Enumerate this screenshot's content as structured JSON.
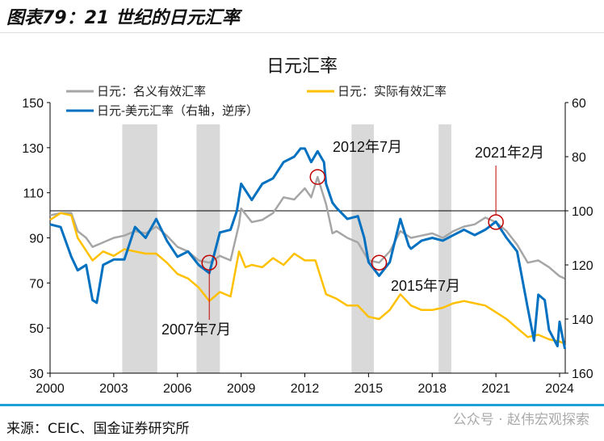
{
  "header": {
    "title": "图表79：21 世纪的日元汇率"
  },
  "footer": {
    "source": "来源：CEIC、国金证券研究所",
    "watermark": "公众号 · 赵伟宏观探索"
  },
  "colors": {
    "nominal": "#a6a6a6",
    "real": "#ffc000",
    "usdjpy": "#0070c0",
    "shade": "#d9d9d9",
    "annot": "#c00000",
    "separator": "#1ba1d8"
  },
  "chart_data": {
    "type": "line",
    "title": "日元汇率",
    "xlim": [
      2000,
      2024.25
    ],
    "x_ticks": [
      "2000",
      "2003",
      "2006",
      "2009",
      "2012",
      "2015",
      "2018",
      "2021",
      "2024"
    ],
    "ylim_left": [
      30,
      150
    ],
    "y_ticks_left": [
      "30",
      "50",
      "70",
      "90",
      "110",
      "130",
      "150"
    ],
    "ylim_right": [
      60,
      160
    ],
    "right_axis_reversed": true,
    "y_ticks_right": [
      "60",
      "80",
      "100",
      "120",
      "140",
      "160"
    ],
    "reference_line_right": 100,
    "shaded_periods": [
      [
        2003.4,
        2005.05
      ],
      [
        2006.9,
        2008.0
      ],
      [
        2014.2,
        2015.25
      ],
      [
        2018.3,
        2018.9
      ]
    ],
    "legend_position": "top",
    "series": [
      {
        "name": "日元：名义有效汇率",
        "axis": "left",
        "key": "nominal",
        "x": [
          2000,
          2000.5,
          2001,
          2001.3,
          2001.7,
          2002,
          2002.5,
          2003,
          2003.5,
          2004,
          2004.5,
          2005,
          2005.5,
          2006,
          2006.5,
          2007,
          2007.5,
          2008,
          2008.5,
          2008.9,
          2009,
          2009.5,
          2010,
          2010.5,
          2011,
          2011.5,
          2012,
          2012.3,
          2012.6,
          2013,
          2013.3,
          2013.5,
          2014,
          2014.5,
          2015,
          2015.5,
          2016,
          2016.5,
          2017,
          2017.5,
          2018,
          2018.5,
          2019,
          2019.5,
          2020,
          2020.5,
          2021,
          2021.5,
          2022,
          2022.5,
          2023,
          2023.5,
          2024,
          2024.25
        ],
        "y": [
          100,
          101,
          101,
          93,
          90,
          86,
          88,
          90,
          91,
          93,
          92,
          95,
          91,
          86,
          84,
          80,
          79,
          82,
          80,
          96,
          103,
          97,
          98,
          101,
          108,
          107,
          112,
          108,
          117,
          105,
          92,
          93,
          90,
          88,
          80,
          79,
          84,
          93,
          90,
          91,
          92,
          90,
          93,
          95,
          96,
          99,
          97,
          93,
          87,
          79,
          80,
          77,
          73,
          72
        ]
      },
      {
        "name": "日元：实际有效汇率",
        "axis": "left",
        "key": "real",
        "x": [
          2000,
          2000.5,
          2001,
          2001.3,
          2002,
          2002.5,
          2003,
          2003.5,
          2004,
          2004.5,
          2005,
          2005.5,
          2006,
          2006.5,
          2007,
          2007.5,
          2008,
          2008.5,
          2008.9,
          2009.2,
          2009.5,
          2010,
          2010.5,
          2011,
          2011.5,
          2012,
          2012.5,
          2013,
          2013.5,
          2014,
          2014.5,
          2015,
          2015.5,
          2016,
          2016.5,
          2017,
          2017.5,
          2018,
          2018.5,
          2019,
          2019.5,
          2020,
          2020.5,
          2021,
          2021.5,
          2022,
          2022.5,
          2023,
          2023.5,
          2024,
          2024.25
        ],
        "y": [
          98,
          101,
          100,
          90,
          80,
          84,
          82,
          85,
          84,
          83,
          83,
          79,
          74,
          72,
          68,
          62,
          66,
          64,
          84,
          77,
          78,
          77,
          81,
          78,
          83,
          80,
          80,
          65,
          63,
          60,
          60,
          55,
          54,
          58,
          65,
          60,
          58,
          58,
          59,
          61,
          62,
          61,
          60,
          57,
          54,
          50,
          46,
          47,
          45,
          44,
          43
        ]
      },
      {
        "name": "日元-美元汇率（右轴，逆序）",
        "axis": "right",
        "key": "usdjpy",
        "x": [
          2000,
          2000.5,
          2001,
          2001.3,
          2001.7,
          2002,
          2002.2,
          2002.5,
          2003,
          2003.5,
          2004,
          2004.5,
          2005,
          2005.5,
          2006,
          2006.5,
          2007,
          2007.5,
          2008,
          2008.5,
          2008.8,
          2009,
          2009.5,
          2010,
          2010.5,
          2011,
          2011.5,
          2011.8,
          2012,
          2012.3,
          2012.6,
          2012.9,
          2013,
          2013.3,
          2013.5,
          2014,
          2014.5,
          2014.8,
          2015,
          2015.5,
          2016,
          2016.5,
          2016.9,
          2017,
          2017.5,
          2018,
          2018.5,
          2019,
          2019.5,
          2020,
          2020.5,
          2021,
          2021.5,
          2022,
          2022.5,
          2022.8,
          2023,
          2023.3,
          2023.5,
          2023.9,
          2024,
          2024.25
        ],
        "y": [
          105,
          106,
          117,
          122,
          120,
          133,
          134,
          120,
          118,
          118,
          106,
          110,
          103,
          111,
          117,
          115,
          120,
          123,
          108,
          107,
          100,
          90,
          96,
          90,
          88,
          82,
          80,
          77,
          77,
          82,
          78,
          82,
          90,
          97,
          99,
          103,
          102,
          110,
          119,
          124,
          119,
          103,
          113,
          114,
          111,
          110,
          111,
          109,
          107,
          109,
          107,
          104,
          110,
          115,
          136,
          148,
          131,
          133,
          144,
          150,
          141,
          151
        ]
      }
    ],
    "annotations": [
      {
        "label": "2007年7月",
        "x": 2007.5,
        "y_left": 79
      },
      {
        "label": "2012年7月",
        "x": 2012.6,
        "y_left": 117
      },
      {
        "label": "2015年7月",
        "x": 2015.5,
        "y_left": 79
      },
      {
        "label": "2021年2月",
        "x": 2021,
        "y_left": 97
      }
    ]
  }
}
